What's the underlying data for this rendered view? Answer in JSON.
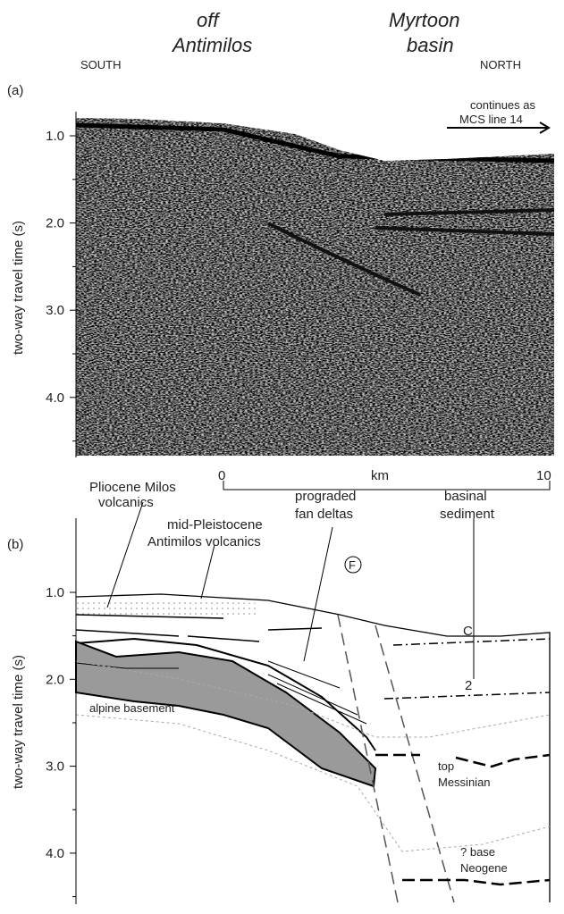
{
  "panel_a": {
    "label": "(a)",
    "title_left": [
      "off",
      "Antimilos"
    ],
    "title_right": [
      "Myrtoon",
      "basin"
    ],
    "south": "SOUTH",
    "north": "NORTH",
    "note": [
      "continues as",
      "MCS line 14"
    ],
    "y_label": "two-way travel time (s)",
    "yticks": [
      {
        "value": 1,
        "label": "1.0"
      },
      {
        "value": 2,
        "label": "2.0"
      },
      {
        "value": 3,
        "label": "3.0"
      },
      {
        "value": 4,
        "label": "4.0"
      }
    ],
    "scale_bar": {
      "start": "0",
      "unit": "km",
      "end": "10"
    }
  },
  "panel_b": {
    "label": "(b)",
    "y_label": "two-way travel time (s)",
    "yticks": [
      {
        "value": 1,
        "label": "1.0"
      },
      {
        "value": 2,
        "label": "2.0"
      },
      {
        "value": 3,
        "label": "3.0"
      },
      {
        "value": 4,
        "label": "4.0"
      }
    ],
    "labels": {
      "pliocene": [
        "Pliocene Milos",
        "volcanics"
      ],
      "pleistocene": [
        "mid-Pleistocene",
        "Antimilos volcanics"
      ],
      "fan": [
        "prograded",
        "fan deltas"
      ],
      "basinal": [
        "basinal",
        "sediment"
      ],
      "fault": "F",
      "c": "C",
      "two": "2",
      "basement": "alpine basement",
      "messinian": [
        "top",
        "Messinian"
      ],
      "neogene": [
        "? base",
        "Neogene"
      ]
    }
  }
}
